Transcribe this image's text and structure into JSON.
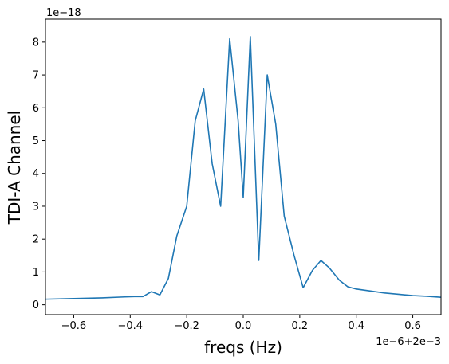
{
  "chart_data": {
    "type": "line",
    "xlabel": "freqs (Hz)",
    "ylabel": "TDI-A Channel",
    "x_offset_text": "1e−6+2e−3",
    "y_offset_text": "1e−18",
    "xlim": [
      -0.7,
      0.7
    ],
    "ylim": [
      -0.3,
      8.7
    ],
    "xticks": [
      -0.6,
      -0.4,
      -0.2,
      0.0,
      0.2,
      0.4,
      0.6
    ],
    "xtick_labels": [
      "−0.6",
      "−0.4",
      "−0.2",
      "0.0",
      "0.2",
      "0.4",
      "0.6"
    ],
    "yticks": [
      0,
      1,
      2,
      3,
      4,
      5,
      6,
      7,
      8
    ],
    "ytick_labels": [
      "0",
      "1",
      "2",
      "3",
      "4",
      "5",
      "6",
      "7",
      "8"
    ],
    "grid": false,
    "line_color": "#1f77b4",
    "series": [
      {
        "x": [
          -0.7,
          -0.6,
          -0.5,
          -0.42,
          -0.385,
          -0.355,
          -0.325,
          -0.295,
          -0.265,
          -0.235,
          -0.2,
          -0.17,
          -0.14,
          -0.11,
          -0.08,
          -0.048,
          -0.018,
          0.0,
          0.025,
          0.055,
          0.085,
          0.115,
          0.145,
          0.18,
          0.212,
          0.245,
          0.275,
          0.305,
          0.34,
          0.37,
          0.4,
          0.45,
          0.5,
          0.55,
          0.6,
          0.65,
          0.7
        ],
        "y": [
          0.17,
          0.19,
          0.21,
          0.24,
          0.25,
          0.25,
          0.4,
          0.3,
          0.8,
          2.1,
          3.0,
          5.6,
          6.57,
          4.3,
          3.0,
          8.1,
          5.6,
          3.27,
          8.17,
          1.35,
          7.0,
          5.5,
          2.7,
          1.5,
          0.52,
          1.05,
          1.35,
          1.12,
          0.75,
          0.55,
          0.48,
          0.42,
          0.36,
          0.32,
          0.28,
          0.26,
          0.23
        ]
      }
    ]
  }
}
